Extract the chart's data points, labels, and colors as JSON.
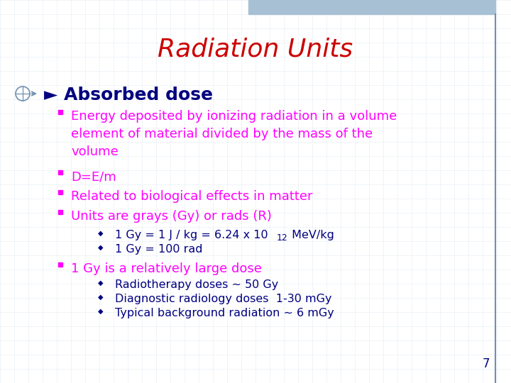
{
  "title": "Radiation Units",
  "title_color": "#CC0000",
  "title_fontsize": 26,
  "bg_color": "#FFFFFF",
  "grid_color": "#C8D8E8",
  "bullet1_header_color": "#000080",
  "bullet1_header_fontsize": 18,
  "sub_color": "#FF00FF",
  "sub_fontsize": 13,
  "sub2_color": "#000080",
  "sub2_fontsize": 11.5,
  "page_num": "7",
  "top_bar_color": "#A8C0D4",
  "right_line_color": "#7090B0",
  "item1": "Energy deposited by ionizing radiation in a volume\nelement of material divided by the mass of the\nvolume",
  "item2": "D=E/m",
  "item3": "Related to biological effects in matter",
  "item4": "Units are grays (Gy) or rads (R)",
  "sub_item1a": "1 Gy = 1 J / kg = 6.24 x 10",
  "sub_item1b": "12",
  "sub_item1c": " MeV/kg",
  "sub_item2": "1 Gy = 100 rad",
  "item5": "1 Gy is a relatively large dose",
  "sub_item5a": "Radiotherapy doses ∼ 50 Gy",
  "sub_item5b": "Diagnostic radiology doses  1-30 mGy",
  "sub_item5c": "Typical background radiation ∼ 6 mGy"
}
